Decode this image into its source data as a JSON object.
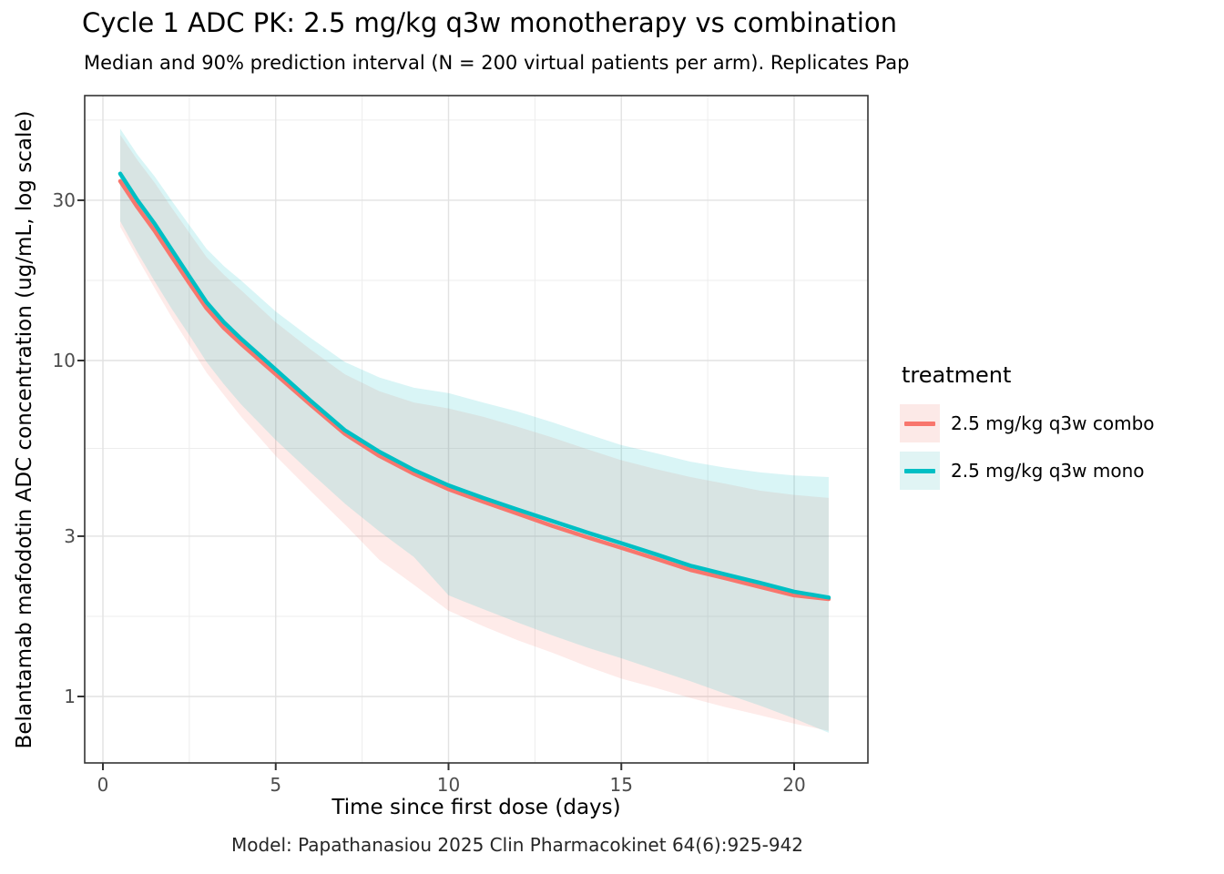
{
  "header": {
    "title": "Cycle 1 ADC PK: 2.5 mg/kg q3w monotherapy vs combination",
    "subtitle": "Median and 90% prediction interval (N = 200 virtual patients per arm). Replicates Pap"
  },
  "axes": {
    "x_label": "Time since first dose (days)",
    "y_label": "Belantamab mafodotin ADC concentration (ug/mL, log scale)",
    "x_ticks": [
      {
        "value": 0,
        "label": "0"
      },
      {
        "value": 5,
        "label": "5"
      },
      {
        "value": 10,
        "label": "10"
      },
      {
        "value": 15,
        "label": "15"
      },
      {
        "value": 20,
        "label": "20"
      }
    ],
    "x_minor": [
      2.5,
      7.5,
      12.5,
      17.5
    ],
    "y_ticks": [
      {
        "value": 30,
        "label": "30"
      },
      {
        "value": 10,
        "label": "10"
      },
      {
        "value": 3,
        "label": "3"
      },
      {
        "value": 1,
        "label": "1"
      }
    ],
    "y_minor": [
      51.96,
      17.32,
      5.477,
      1.732
    ]
  },
  "legend": {
    "title": "treatment",
    "entries": [
      {
        "label": "2.5 mg/kg q3w combo",
        "line_color": "#F8766D",
        "fill_color": "#FCE9E7"
      },
      {
        "label": "2.5 mg/kg q3w mono",
        "line_color": "#00BFC4",
        "fill_color": "#E0F4F4"
      }
    ]
  },
  "caption": "Model: Papathanasiou 2025 Clin Pharmacokinet 64(6):925-942",
  "colors": {
    "combo_line": "#F8766D",
    "mono_line": "#00BFC4",
    "grid_major": "#E2E2E2",
    "grid_minor": "#EDEDED",
    "panel_border": "#333333",
    "tick_mark": "#333333",
    "tick_text": "#4d4d4d"
  },
  "chart_data": {
    "type": "line",
    "title": "Cycle 1 ADC PK: 2.5 mg/kg q3w monotherapy vs combination",
    "subtitle": "Median and 90% prediction interval (N = 200 virtual patients per arm). Replicates Pap",
    "xlabel": "Time since first dose (days)",
    "ylabel": "Belantamab mafodotin ADC concentration (ug/mL, log scale)",
    "x_unit": "days",
    "y_unit": "ug/mL",
    "y_scale": "log10",
    "xlim": [
      -0.5,
      22.1
    ],
    "ylim_log": [
      0.63,
      46
    ],
    "legend_position": "right",
    "grid": true,
    "x": [
      0.5,
      1,
      1.5,
      2,
      2.5,
      3,
      3.5,
      4,
      5,
      6,
      7,
      8,
      9,
      10,
      11,
      12,
      13,
      14,
      15,
      16,
      17,
      18,
      19,
      20,
      21
    ],
    "series": [
      {
        "name": "2.5 mg/kg q3w combo",
        "color": "#F8766D",
        "median": [
          34.2,
          28.6,
          24.3,
          20.3,
          17.0,
          14.3,
          12.5,
          11.2,
          9.1,
          7.4,
          6.05,
          5.2,
          4.6,
          4.14,
          3.8,
          3.5,
          3.22,
          2.98,
          2.77,
          2.57,
          2.38,
          2.25,
          2.12,
          2.0,
          1.95
        ],
        "pi90_upper": [
          47,
          39.5,
          33.8,
          28.4,
          24.0,
          20.3,
          18.0,
          16.2,
          13.0,
          10.8,
          9.1,
          8.1,
          7.5,
          7.2,
          6.8,
          6.35,
          5.9,
          5.45,
          5.05,
          4.75,
          4.5,
          4.3,
          4.1,
          3.98,
          3.9
        ],
        "pi90_lower": [
          25,
          20.2,
          16.4,
          13.4,
          11.1,
          9.2,
          7.9,
          6.8,
          5.2,
          4.1,
          3.25,
          2.55,
          2.15,
          1.8,
          1.62,
          1.47,
          1.35,
          1.23,
          1.13,
          1.06,
          0.99,
          0.93,
          0.88,
          0.83,
          0.79
        ]
      },
      {
        "name": "2.5 mg/kg q3w mono",
        "color": "#00BFC4",
        "median": [
          36,
          30,
          25.5,
          21.3,
          17.8,
          14.9,
          13.0,
          11.6,
          9.4,
          7.6,
          6.2,
          5.35,
          4.72,
          4.25,
          3.9,
          3.6,
          3.33,
          3.08,
          2.86,
          2.65,
          2.45,
          2.31,
          2.18,
          2.05,
          1.97
        ],
        "pi90_upper": [
          49,
          41,
          35.3,
          29.8,
          25.3,
          21.5,
          19.1,
          17.3,
          14.0,
          11.7,
          9.9,
          8.9,
          8.3,
          8.0,
          7.5,
          7.05,
          6.55,
          6.05,
          5.6,
          5.3,
          5.0,
          4.8,
          4.65,
          4.55,
          4.5
        ],
        "pi90_lower": [
          26,
          21,
          17.2,
          14.2,
          11.9,
          9.9,
          8.5,
          7.4,
          5.8,
          4.65,
          3.75,
          3.1,
          2.6,
          2.0,
          1.82,
          1.66,
          1.52,
          1.4,
          1.3,
          1.2,
          1.11,
          1.02,
          0.94,
          0.86,
          0.78
        ]
      }
    ]
  }
}
